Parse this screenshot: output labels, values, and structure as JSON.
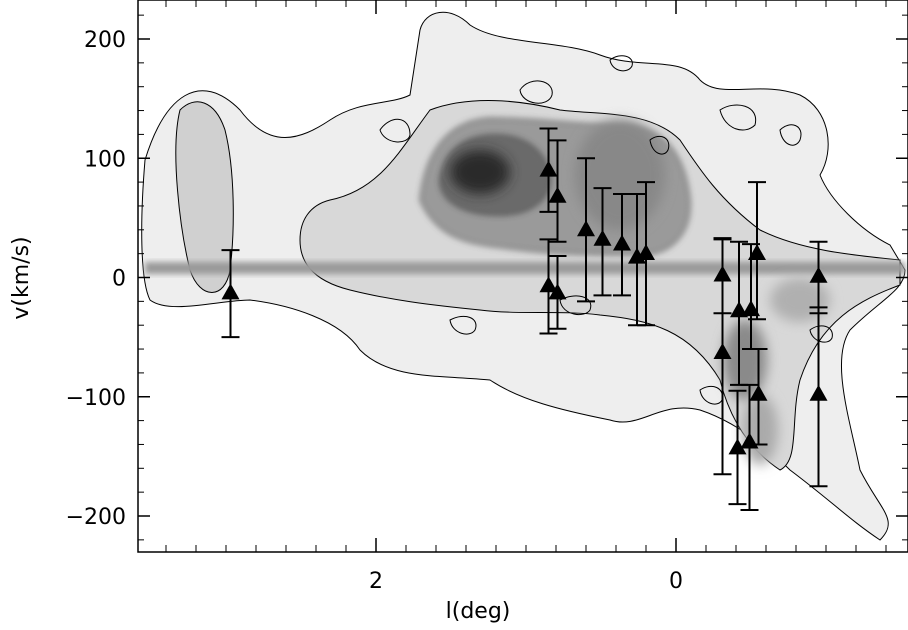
{
  "chart_data": {
    "type": "scatter",
    "title": "",
    "xlabel": "l(deg)",
    "ylabel": "v(km/s)",
    "xlim": [
      3.5,
      -1.5
    ],
    "ylim": [
      -230,
      230
    ],
    "x_ticks": [
      2,
      0
    ],
    "x_tick_labels": [
      "2",
      "0"
    ],
    "y_ticks": [
      200,
      100,
      0,
      -100,
      -200
    ],
    "y_tick_labels": [
      "200",
      "100",
      "0",
      "−100",
      "−200"
    ],
    "background": "greyscale contour map of CO emission",
    "grid": false,
    "legend": "none",
    "colors": {
      "marker": "#000000",
      "errorbar": "#000000",
      "contour": "#000000"
    },
    "series": [
      {
        "marker": "triangle",
        "points": [
          {
            "l": 2.97,
            "v": -13,
            "vmin": -50,
            "vmax": 23
          },
          {
            "l": 0.85,
            "v": 90,
            "vmin": 55,
            "vmax": 125
          },
          {
            "l": 0.79,
            "v": 68,
            "vmin": 30,
            "vmax": 115
          },
          {
            "l": 0.6,
            "v": 40,
            "vmin": -20,
            "vmax": 100
          },
          {
            "l": 0.49,
            "v": 32,
            "vmin": -15,
            "vmax": 75
          },
          {
            "l": 0.36,
            "v": 28,
            "vmin": -15,
            "vmax": 70
          },
          {
            "l": 0.26,
            "v": 17,
            "vmin": -40,
            "vmax": 70
          },
          {
            "l": 0.2,
            "v": 20,
            "vmin": -40,
            "vmax": 80
          },
          {
            "l": 0.85,
            "v": -7,
            "vmin": -47,
            "vmax": 32
          },
          {
            "l": 0.79,
            "v": -13,
            "vmin": -43,
            "vmax": 18
          },
          {
            "l": -0.31,
            "v": 2,
            "vmin": -30,
            "vmax": 33
          },
          {
            "l": -0.42,
            "v": -28,
            "vmin": -90,
            "vmax": 30
          },
          {
            "l": -0.5,
            "v": -27,
            "vmin": -60,
            "vmax": 28
          },
          {
            "l": -0.54,
            "v": 20,
            "vmin": -35,
            "vmax": 80
          },
          {
            "l": -0.31,
            "v": -63,
            "vmin": -165,
            "vmax": 32
          },
          {
            "l": -0.41,
            "v": -143,
            "vmin": -190,
            "vmax": -95
          },
          {
            "l": -0.49,
            "v": -138,
            "vmin": -195,
            "vmax": -90
          },
          {
            "l": -0.55,
            "v": -98,
            "vmin": -140,
            "vmax": -60
          },
          {
            "l": -0.95,
            "v": 1,
            "vmin": -30,
            "vmax": 30
          },
          {
            "l": -0.95,
            "v": -98,
            "vmin": -175,
            "vmax": -25
          }
        ]
      }
    ]
  }
}
